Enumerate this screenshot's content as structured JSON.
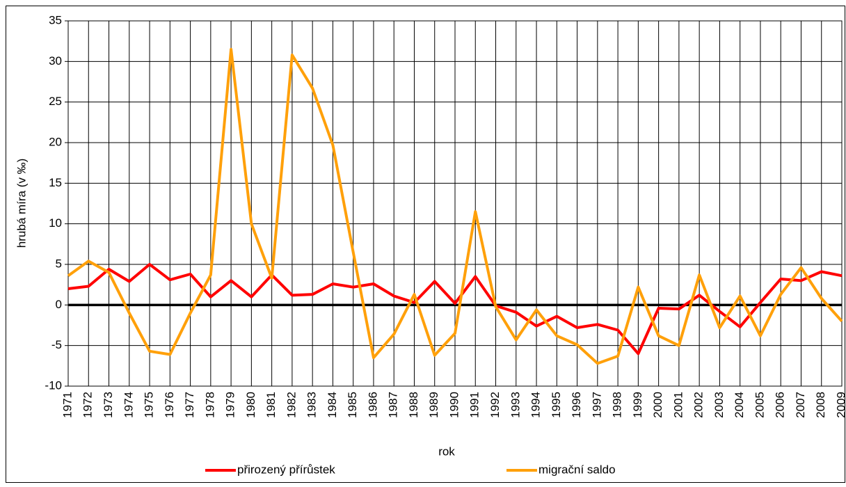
{
  "chart_data": {
    "type": "line",
    "x_label": "rok",
    "y_label": "hrubá míra (v ‰)",
    "categories": [
      "1971",
      "1972",
      "1973",
      "1974",
      "1975",
      "1976",
      "1977",
      "1978",
      "1979",
      "1980",
      "1981",
      "1982",
      "1983",
      "1984",
      "1985",
      "1986",
      "1987",
      "1988",
      "1989",
      "1990",
      "1991",
      "1992",
      "1993",
      "1994",
      "1995",
      "1996",
      "1997",
      "1998",
      "1999",
      "2000",
      "2001",
      "2002",
      "2003",
      "2004",
      "2005",
      "2006",
      "2007",
      "2008",
      "2009"
    ],
    "series": [
      {
        "name": "přirozený přírůstek",
        "color": "#ff0000",
        "values": [
          2.0,
          2.3,
          4.4,
          2.9,
          5.0,
          3.1,
          3.8,
          1.0,
          3.0,
          1.0,
          3.7,
          1.2,
          1.3,
          2.6,
          2.2,
          2.6,
          1.1,
          0.3,
          2.9,
          0.2,
          3.5,
          -0.1,
          -0.9,
          -2.6,
          -1.4,
          -2.8,
          -2.4,
          -3.1,
          -6.0,
          -0.4,
          -0.5,
          1.2,
          -0.8,
          -2.7,
          0.3,
          3.2,
          3.0,
          4.1,
          3.6
        ]
      },
      {
        "name": "migrační saldo",
        "color": "#ffa00a",
        "values": [
          3.6,
          5.4,
          4.0,
          -1.0,
          -5.7,
          -6.1,
          -1.0,
          3.7,
          31.5,
          10.0,
          3.3,
          30.8,
          26.7,
          19.7,
          6.5,
          -6.5,
          -3.6,
          1.3,
          -6.2,
          -3.5,
          11.5,
          -0.2,
          -4.3,
          -0.6,
          -3.8,
          -4.9,
          -7.2,
          -6.3,
          2.2,
          -3.8,
          -5.0,
          3.7,
          -2.8,
          1.1,
          -3.8,
          1.3,
          4.6,
          0.8,
          -2.0
        ]
      }
    ],
    "ylim": [
      -10,
      35
    ],
    "yticks": [
      -10,
      -5,
      0,
      5,
      10,
      15,
      20,
      25,
      30,
      35
    ],
    "grid": true,
    "zero_line": true,
    "legend": "bottom"
  }
}
